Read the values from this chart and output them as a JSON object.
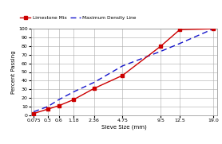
{
  "sieve_sizes": [
    0.075,
    0.3,
    0.6,
    1.18,
    2.36,
    4.75,
    9.5,
    12.5,
    19.0
  ],
  "limestone_mix": [
    2,
    7,
    11,
    18,
    31,
    46,
    80,
    99,
    100
  ],
  "max_density": [
    4,
    10,
    18,
    27,
    38,
    57,
    74,
    83,
    100
  ],
  "xlabel": "Sieve Size (mm)",
  "ylabel": "Percent Passing",
  "ylim": [
    0,
    100
  ],
  "yticks": [
    0,
    10,
    20,
    30,
    40,
    50,
    60,
    70,
    80,
    90,
    100
  ],
  "line_color_limestone": "#cc0000",
  "line_color_maxdensity": "#1515cc",
  "legend_limestone": "Limestone Mix",
  "legend_maxdensity": "Maximum Density Line",
  "bg_color": "#ffffff",
  "grid_color": "#aaaaaa",
  "power": 0.45
}
